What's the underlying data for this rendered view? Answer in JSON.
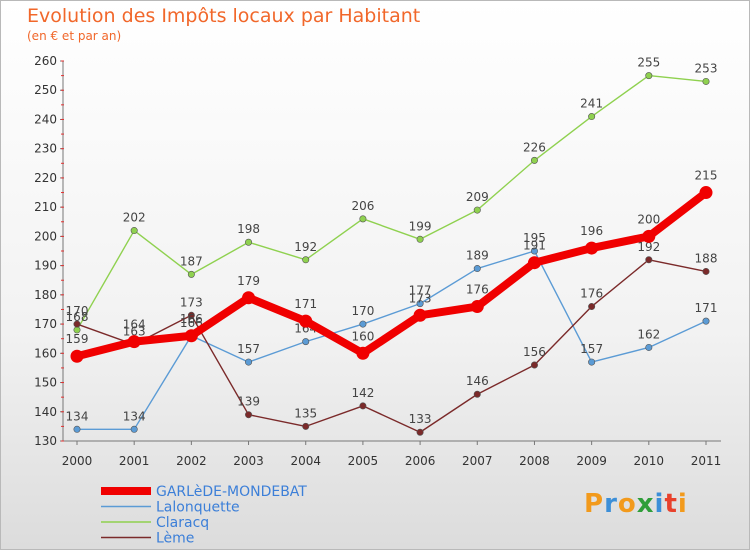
{
  "title": "Evolution des Impôts locaux par Habitant",
  "subtitle": "(en € et par an)",
  "logo": {
    "text": "Proxiti",
    "colors": [
      "#f29a1c",
      "#3c8fd8",
      "#f29a1c",
      "#2f9e3a",
      "#3c8fd8",
      "#e8412c",
      "#f29a1c"
    ]
  },
  "chart_data": {
    "type": "line",
    "x": [
      "2000",
      "2001",
      "2002",
      "2003",
      "2004",
      "2005",
      "2006",
      "2007",
      "2008",
      "2009",
      "2010",
      "2011"
    ],
    "ylim": [
      130,
      260
    ],
    "yticks": [
      130,
      140,
      150,
      160,
      170,
      180,
      190,
      200,
      210,
      220,
      230,
      240,
      250,
      260
    ],
    "grid": false,
    "legend_placement": "bottom-left",
    "series": [
      {
        "name": "Lalonquette",
        "color": "#5b9bd5",
        "values": [
          134,
          134,
          166,
          157,
          164,
          170,
          177,
          189,
          195,
          157,
          162,
          171
        ],
        "labels": [
          "134",
          "134",
          "166",
          "157",
          "164",
          "170",
          "177",
          "189",
          "195",
          "157",
          "162",
          "171"
        ]
      },
      {
        "name": "Claracq",
        "color": "#8fd14f",
        "values": [
          168,
          202,
          187,
          198,
          192,
          206,
          199,
          209,
          226,
          241,
          255,
          253
        ],
        "labels": [
          "168",
          "202",
          "187",
          "198",
          "192",
          "206",
          "199",
          "209",
          "226",
          "241",
          "255",
          "253"
        ]
      },
      {
        "name": "Lème",
        "color": "#7b2a2a",
        "values": [
          170,
          163,
          173,
          139,
          135,
          142,
          133,
          146,
          156,
          176,
          192,
          188
        ],
        "labels": [
          "170",
          "163",
          "173",
          "139",
          "135",
          "142",
          "133",
          "146",
          "156",
          "176",
          "192",
          "188"
        ]
      },
      {
        "name": "GARLèDE-MONDEBAT",
        "color": "#f00000",
        "values": [
          159,
          164,
          166,
          179,
          171,
          160,
          173,
          176,
          191,
          196,
          200,
          215
        ],
        "labels": [
          "159",
          "164",
          "166",
          "179",
          "171",
          "160",
          "173",
          "176",
          "191",
          "196",
          "200",
          "215"
        ]
      }
    ],
    "legend": [
      "GARLèDE-MONDEBAT",
      "Lalonquette",
      "Claracq",
      "Lème"
    ]
  }
}
